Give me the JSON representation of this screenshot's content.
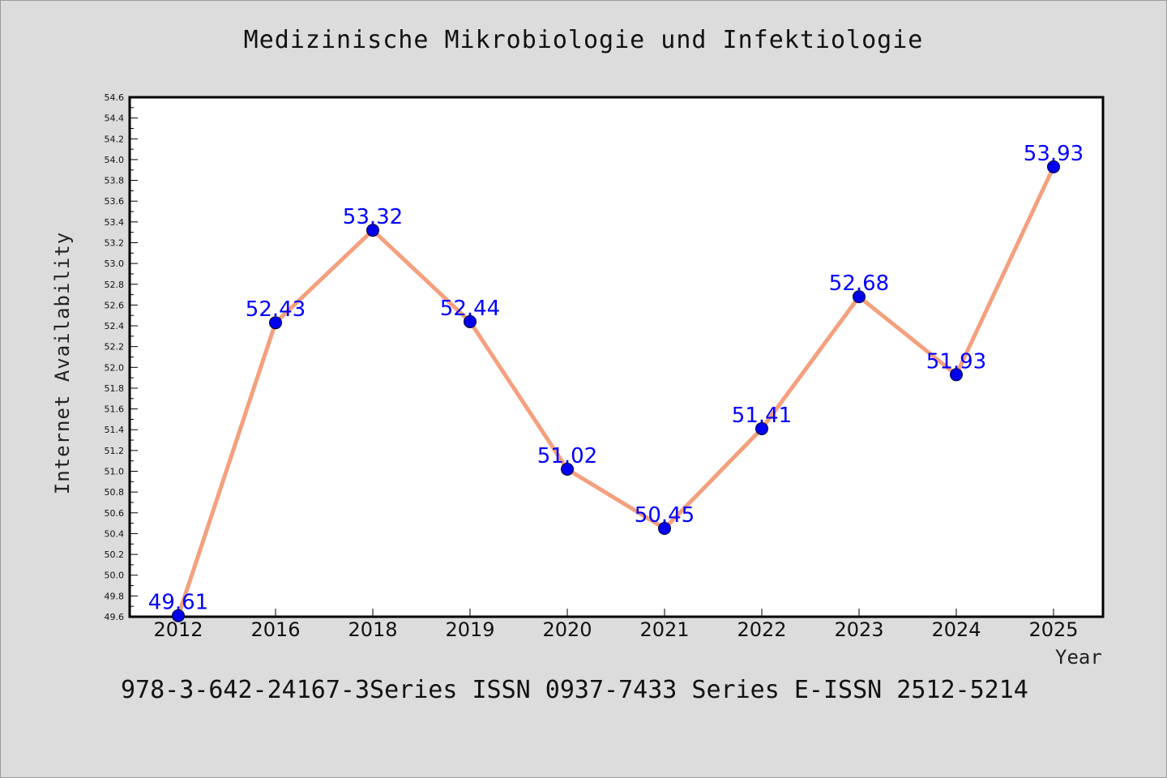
{
  "title": "Medizinische Mikrobiologie und Infektiologie",
  "footer": "978-3-642-24167-3Series ISSN 0937-7433 Series E-ISSN 2512-5214",
  "chart_data": {
    "type": "line",
    "title": "Medizinische Mikrobiologie und Infektiologie",
    "xlabel": "Year",
    "ylabel": "Internet Availability",
    "categories": [
      "2012",
      "2016",
      "2018",
      "2019",
      "2020",
      "2021",
      "2022",
      "2023",
      "2024",
      "2025"
    ],
    "series": [
      {
        "values": [
          49.61,
          52.43,
          53.32,
          52.44,
          51.02,
          50.45,
          51.41,
          52.68,
          51.93,
          53.93
        ],
        "line_color": "#f4a07e",
        "marker_color": "#0000ee",
        "label_color": "#0000ff"
      }
    ],
    "data_labels": [
      "49.61",
      "52.43",
      "53.32",
      "52.44",
      "51.02",
      "50.45",
      "51.41",
      "52.68",
      "51.93",
      "53.93"
    ],
    "ylim": [
      49.6,
      54.6
    ],
    "ytick_step": 0.2,
    "grid": false,
    "legend": "none"
  }
}
